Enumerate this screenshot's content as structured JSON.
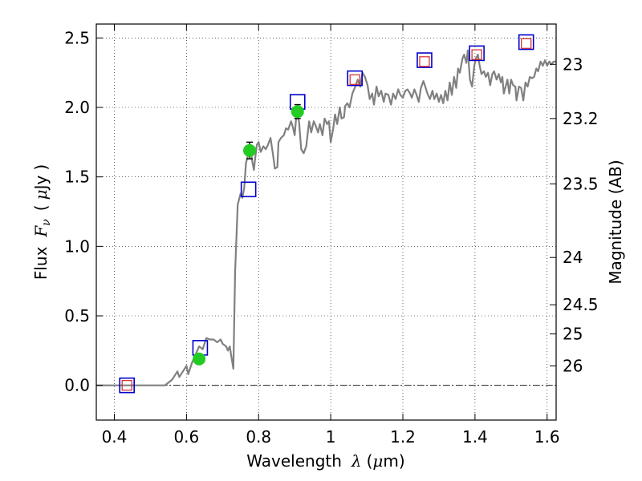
{
  "chart_data": {
    "type": "scatter",
    "xlabel_text": "Wavelength",
    "xlabel_symbol": "λ",
    "xlabel_unit_open": "(",
    "xlabel_unit_mu": "μ",
    "xlabel_unit_rest": "m)",
    "ylabel_text": "Flux",
    "ylabel_symbol_F": "F",
    "ylabel_symbol_nu": "ν",
    "ylabel_unit_open": "(",
    "ylabel_unit_mu": "μ",
    "ylabel_unit_rest": "Jy",
    "ylabel_unit_close": ")",
    "y2label": "Magnitude (AB)",
    "xlim": [
      0.35,
      1.625
    ],
    "ylim": [
      -0.25,
      2.6
    ],
    "grid": true,
    "xticks": [
      0.4,
      0.6,
      0.8,
      1.0,
      1.2,
      1.4,
      1.6
    ],
    "xtick_labels": [
      "0.4",
      "0.6",
      "0.8",
      "1",
      "1.2",
      "1.4",
      "1.6"
    ],
    "yticks": [
      0.0,
      0.5,
      1.0,
      1.5,
      2.0,
      2.5
    ],
    "ytick_labels": [
      "0.0",
      "0.5",
      "1.0",
      "1.5",
      "2.0",
      "2.5"
    ],
    "y2ticks": [
      {
        "label": "23",
        "flux": 2.31
      },
      {
        "label": "23.2",
        "flux": 1.92
      },
      {
        "label": "23.5",
        "flux": 1.45
      },
      {
        "label": "24",
        "flux": 0.92
      },
      {
        "label": "24.5",
        "flux": 0.58
      },
      {
        "label": "25",
        "flux": 0.37
      },
      {
        "label": "26",
        "flux": 0.14
      }
    ],
    "zero_line": 0.0,
    "sed_model": {
      "color": "#808080",
      "points": [
        [
          0.35,
          0.0
        ],
        [
          0.45,
          0.0
        ],
        [
          0.54,
          0.0
        ],
        [
          0.56,
          0.04
        ],
        [
          0.575,
          0.1
        ],
        [
          0.58,
          0.06
        ],
        [
          0.59,
          0.1
        ],
        [
          0.6,
          0.14
        ],
        [
          0.605,
          0.08
        ],
        [
          0.615,
          0.16
        ],
        [
          0.625,
          0.22
        ],
        [
          0.635,
          0.28
        ],
        [
          0.645,
          0.26
        ],
        [
          0.655,
          0.34
        ],
        [
          0.665,
          0.33
        ],
        [
          0.675,
          0.33
        ],
        [
          0.685,
          0.31
        ],
        [
          0.695,
          0.33
        ],
        [
          0.7,
          0.3
        ],
        [
          0.71,
          0.28
        ],
        [
          0.715,
          0.25
        ],
        [
          0.72,
          0.28
        ],
        [
          0.725,
          0.2
        ],
        [
          0.73,
          0.12
        ],
        [
          0.735,
          0.82
        ],
        [
          0.742,
          1.3
        ],
        [
          0.75,
          1.38
        ],
        [
          0.755,
          1.35
        ],
        [
          0.76,
          1.42
        ],
        [
          0.765,
          1.6
        ],
        [
          0.77,
          1.65
        ],
        [
          0.778,
          1.7
        ],
        [
          0.782,
          1.62
        ],
        [
          0.787,
          1.55
        ],
        [
          0.79,
          1.62
        ],
        [
          0.795,
          1.73
        ],
        [
          0.8,
          1.75
        ],
        [
          0.806,
          1.68
        ],
        [
          0.813,
          1.72
        ],
        [
          0.82,
          1.7
        ],
        [
          0.826,
          1.73
        ],
        [
          0.833,
          1.78
        ],
        [
          0.84,
          1.66
        ],
        [
          0.845,
          1.56
        ],
        [
          0.852,
          1.57
        ],
        [
          0.855,
          1.75
        ],
        [
          0.862,
          1.78
        ],
        [
          0.87,
          1.8
        ],
        [
          0.876,
          1.85
        ],
        [
          0.882,
          1.84
        ],
        [
          0.89,
          1.9
        ],
        [
          0.895,
          1.86
        ],
        [
          0.9,
          1.8
        ],
        [
          0.905,
          1.95
        ],
        [
          0.912,
          1.9
        ],
        [
          0.918,
          1.7
        ],
        [
          0.925,
          1.67
        ],
        [
          0.932,
          1.72
        ],
        [
          0.94,
          1.9
        ],
        [
          0.946,
          1.82
        ],
        [
          0.953,
          1.9
        ],
        [
          0.958,
          1.87
        ],
        [
          0.965,
          1.82
        ],
        [
          0.97,
          1.88
        ],
        [
          0.977,
          1.8
        ],
        [
          0.983,
          1.92
        ],
        [
          0.99,
          1.88
        ],
        [
          0.995,
          1.9
        ],
        [
          1.0,
          1.75
        ],
        [
          1.007,
          1.85
        ],
        [
          1.012,
          1.95
        ],
        [
          1.018,
          1.88
        ],
        [
          1.025,
          2.0
        ],
        [
          1.03,
          1.92
        ],
        [
          1.037,
          1.93
        ],
        [
          1.04,
          2.01
        ],
        [
          1.046,
          2.03
        ],
        [
          1.052,
          2.0
        ],
        [
          1.06,
          2.1
        ],
        [
          1.068,
          2.15
        ],
        [
          1.075,
          2.2
        ],
        [
          1.082,
          2.15
        ],
        [
          1.088,
          2.25
        ],
        [
          1.095,
          2.22
        ],
        [
          1.102,
          2.16
        ],
        [
          1.108,
          2.06
        ],
        [
          1.115,
          2.1
        ],
        [
          1.12,
          2.02
        ],
        [
          1.127,
          2.15
        ],
        [
          1.133,
          2.08
        ],
        [
          1.14,
          2.12
        ],
        [
          1.147,
          2.04
        ],
        [
          1.152,
          2.1
        ],
        [
          1.16,
          2.09
        ],
        [
          1.167,
          2.02
        ],
        [
          1.173,
          2.1
        ],
        [
          1.18,
          2.06
        ],
        [
          1.187,
          2.13
        ],
        [
          1.193,
          2.09
        ],
        [
          1.2,
          2.07
        ],
        [
          1.207,
          2.12
        ],
        [
          1.213,
          2.13
        ],
        [
          1.22,
          2.1
        ],
        [
          1.225,
          2.07
        ],
        [
          1.232,
          2.13
        ],
        [
          1.238,
          2.09
        ],
        [
          1.244,
          2.04
        ],
        [
          1.25,
          2.14
        ],
        [
          1.257,
          2.19
        ],
        [
          1.262,
          2.15
        ],
        [
          1.268,
          2.1
        ],
        [
          1.275,
          2.06
        ],
        [
          1.282,
          2.12
        ],
        [
          1.287,
          2.06
        ],
        [
          1.294,
          2.1
        ],
        [
          1.3,
          2.04
        ],
        [
          1.306,
          2.09
        ],
        [
          1.312,
          2.03
        ],
        [
          1.318,
          2.12
        ],
        [
          1.324,
          2.05
        ],
        [
          1.33,
          2.18
        ],
        [
          1.336,
          2.09
        ],
        [
          1.342,
          2.22
        ],
        [
          1.348,
          2.14
        ],
        [
          1.353,
          2.28
        ],
        [
          1.358,
          2.25
        ],
        [
          1.365,
          2.35
        ],
        [
          1.37,
          2.38
        ],
        [
          1.376,
          2.32
        ],
        [
          1.38,
          2.41
        ],
        [
          1.386,
          2.2
        ],
        [
          1.392,
          2.15
        ],
        [
          1.398,
          2.3
        ],
        [
          1.402,
          2.35
        ],
        [
          1.408,
          2.38
        ],
        [
          1.413,
          2.3
        ],
        [
          1.418,
          2.24
        ],
        [
          1.425,
          2.26
        ],
        [
          1.43,
          2.22
        ],
        [
          1.436,
          2.25
        ],
        [
          1.442,
          2.16
        ],
        [
          1.448,
          2.24
        ],
        [
          1.453,
          2.26
        ],
        [
          1.46,
          2.2
        ],
        [
          1.466,
          2.24
        ],
        [
          1.472,
          2.18
        ],
        [
          1.476,
          2.22
        ],
        [
          1.48,
          2.1
        ],
        [
          1.486,
          2.16
        ],
        [
          1.49,
          2.2
        ],
        [
          1.495,
          2.1
        ],
        [
          1.5,
          2.2
        ],
        [
          1.506,
          2.16
        ],
        [
          1.512,
          2.15
        ],
        [
          1.515,
          2.05
        ],
        [
          1.522,
          2.15
        ],
        [
          1.528,
          2.14
        ],
        [
          1.534,
          2.05
        ],
        [
          1.54,
          2.18
        ],
        [
          1.546,
          2.15
        ],
        [
          1.552,
          2.22
        ],
        [
          1.558,
          2.21
        ],
        [
          1.564,
          2.22
        ],
        [
          1.57,
          2.28
        ],
        [
          1.575,
          2.26
        ],
        [
          1.582,
          2.33
        ],
        [
          1.588,
          2.3
        ],
        [
          1.594,
          2.34
        ],
        [
          1.6,
          2.3
        ],
        [
          1.606,
          2.33
        ],
        [
          1.612,
          2.31
        ],
        [
          1.618,
          2.33
        ],
        [
          1.625,
          2.33
        ]
      ]
    },
    "blue_squares": {
      "color": "#0000cc",
      "points": [
        [
          0.435,
          0.0
        ],
        [
          0.638,
          0.27
        ],
        [
          0.772,
          1.41
        ],
        [
          0.908,
          2.04
        ],
        [
          1.067,
          2.21
        ],
        [
          1.26,
          2.34
        ],
        [
          1.405,
          2.39
        ],
        [
          1.542,
          2.47
        ]
      ]
    },
    "red_squares": {
      "color": "#d62728",
      "points": [
        [
          0.435,
          0.0
        ],
        [
          1.067,
          2.2
        ],
        [
          1.26,
          2.33
        ],
        [
          1.405,
          2.38
        ],
        [
          1.542,
          2.46
        ]
      ]
    },
    "green_points": {
      "color": "#22cc22",
      "points": [
        {
          "x": 0.635,
          "y": 0.19,
          "err": 0.025
        },
        {
          "x": 0.775,
          "y": 1.69,
          "err": 0.06
        },
        {
          "x": 0.908,
          "y": 1.97,
          "err": 0.05
        }
      ]
    }
  }
}
